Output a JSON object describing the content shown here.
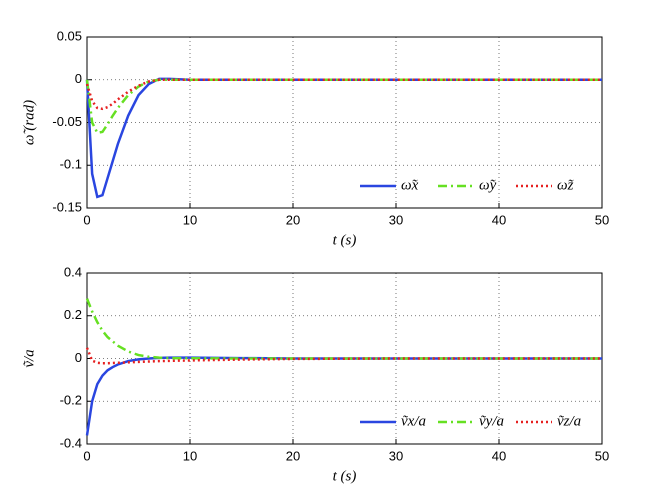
{
  "chart_data": [
    {
      "type": "line",
      "xlabel": "t (s)",
      "ylabel": "ω̃ (rad)",
      "x": [
        0,
        0.5,
        1,
        1.5,
        2,
        2.5,
        3,
        4,
        5,
        6,
        7,
        8,
        10,
        15,
        20,
        30,
        40,
        50
      ],
      "xlim": [
        0,
        50
      ],
      "xticks": [
        0,
        10,
        20,
        30,
        40,
        50
      ],
      "ylim": [
        -0.15,
        0.05
      ],
      "yticks": [
        -0.15,
        -0.1,
        -0.05,
        0,
        0.05
      ],
      "grid": true,
      "legend": "lower right",
      "series": [
        {
          "name": "ω̃x",
          "color": "#2a46e0",
          "linestyle": "solid",
          "values": [
            0,
            -0.11,
            -0.137,
            -0.135,
            -0.115,
            -0.095,
            -0.075,
            -0.042,
            -0.018,
            -0.005,
            0.001,
            0.001,
            0,
            0,
            0,
            0,
            0,
            0
          ]
        },
        {
          "name": "ω̃y",
          "color": "#66e022",
          "linestyle": "dashdot",
          "values": [
            0,
            -0.05,
            -0.062,
            -0.061,
            -0.052,
            -0.042,
            -0.033,
            -0.018,
            -0.008,
            -0.002,
            0,
            0,
            0,
            0,
            0,
            0,
            0,
            0
          ]
        },
        {
          "name": "ω̃z",
          "color": "#e62020",
          "linestyle": "dotted",
          "values": [
            -0.005,
            -0.025,
            -0.033,
            -0.034,
            -0.032,
            -0.028,
            -0.023,
            -0.014,
            -0.007,
            -0.002,
            0,
            0,
            0,
            0,
            0,
            0,
            0,
            0
          ]
        }
      ]
    },
    {
      "type": "line",
      "xlabel": "t (s)",
      "ylabel": "ṽ/a",
      "x": [
        0,
        0.5,
        1,
        1.5,
        2,
        2.5,
        3,
        4,
        5,
        6,
        7,
        8,
        10,
        15,
        20,
        30,
        40,
        50
      ],
      "xlim": [
        0,
        50
      ],
      "xticks": [
        0,
        10,
        20,
        30,
        40,
        50
      ],
      "ylim": [
        -0.4,
        0.4
      ],
      "yticks": [
        -0.4,
        -0.2,
        0,
        0.2,
        0.4
      ],
      "grid": true,
      "legend": "lower right",
      "series": [
        {
          "name": "ṽx/a",
          "color": "#2a46e0",
          "linestyle": "solid",
          "values": [
            -0.36,
            -0.2,
            -0.12,
            -0.08,
            -0.055,
            -0.04,
            -0.028,
            -0.012,
            -0.004,
            0,
            0.003,
            0.004,
            0.004,
            0.002,
            0,
            0,
            0,
            0
          ]
        },
        {
          "name": "ṽy/a",
          "color": "#66e022",
          "linestyle": "dashdot",
          "values": [
            0.28,
            0.22,
            0.17,
            0.13,
            0.1,
            0.08,
            0.06,
            0.033,
            0.016,
            0.008,
            0.004,
            0.002,
            0.001,
            0,
            0,
            0,
            0,
            0
          ]
        },
        {
          "name": "ṽz/a",
          "color": "#e62020",
          "linestyle": "dotted",
          "values": [
            0.05,
            -0.01,
            -0.02,
            -0.022,
            -0.022,
            -0.021,
            -0.02,
            -0.018,
            -0.016,
            -0.014,
            -0.012,
            -0.011,
            -0.009,
            -0.005,
            -0.002,
            0,
            0,
            0
          ]
        }
      ]
    }
  ]
}
